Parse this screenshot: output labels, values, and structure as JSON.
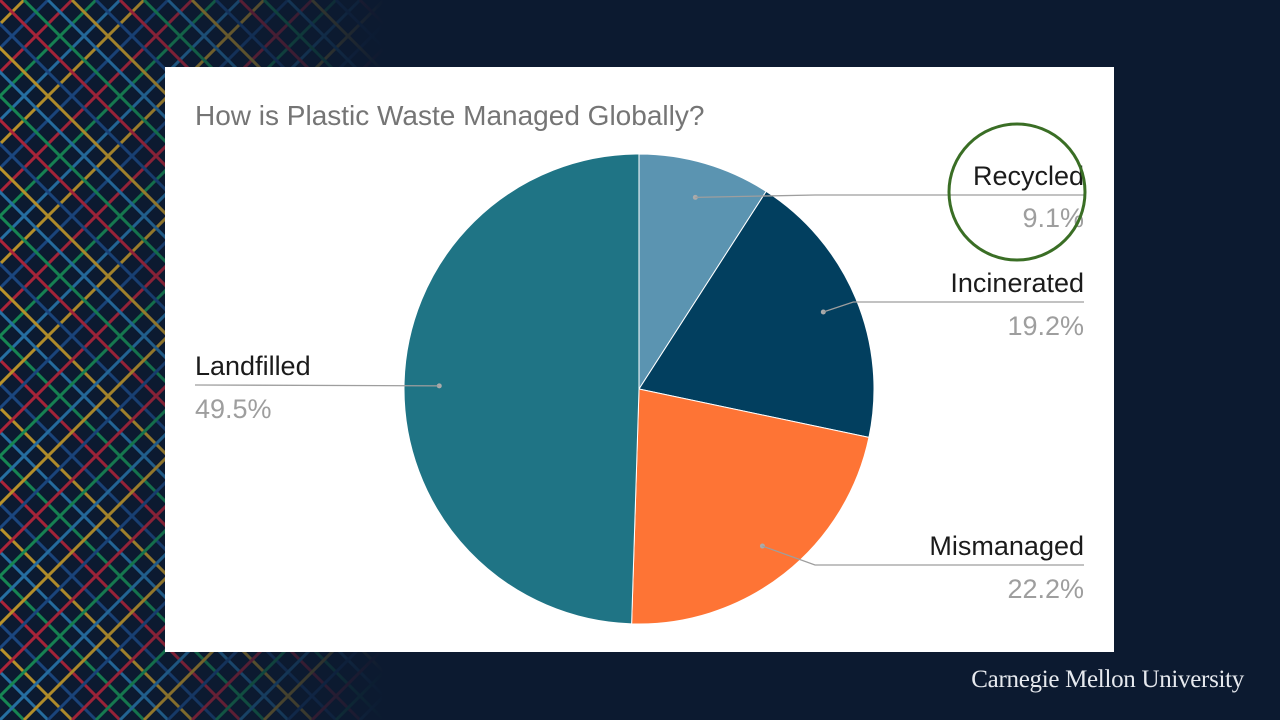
{
  "chart_data": {
    "type": "pie",
    "title": "How is Plastic Waste Managed Globally?",
    "slices": [
      {
        "label": "Recycled",
        "value": 9.1,
        "display": "9.1%",
        "color": "#5b94b1"
      },
      {
        "label": "Incinerated",
        "value": 19.2,
        "display": "19.2%",
        "color": "#023f5f"
      },
      {
        "label": "Mismanaged",
        "value": 22.2,
        "display": "22.2%",
        "color": "#fe7435"
      },
      {
        "label": "Landfilled",
        "value": 49.5,
        "display": "49.5%",
        "color": "#1f7485"
      }
    ],
    "legend": "none",
    "highlight": {
      "label": "Recycled",
      "style": "circle",
      "color": "#3a6e25"
    }
  },
  "footer": {
    "text": "Carnegie Mellon University"
  }
}
